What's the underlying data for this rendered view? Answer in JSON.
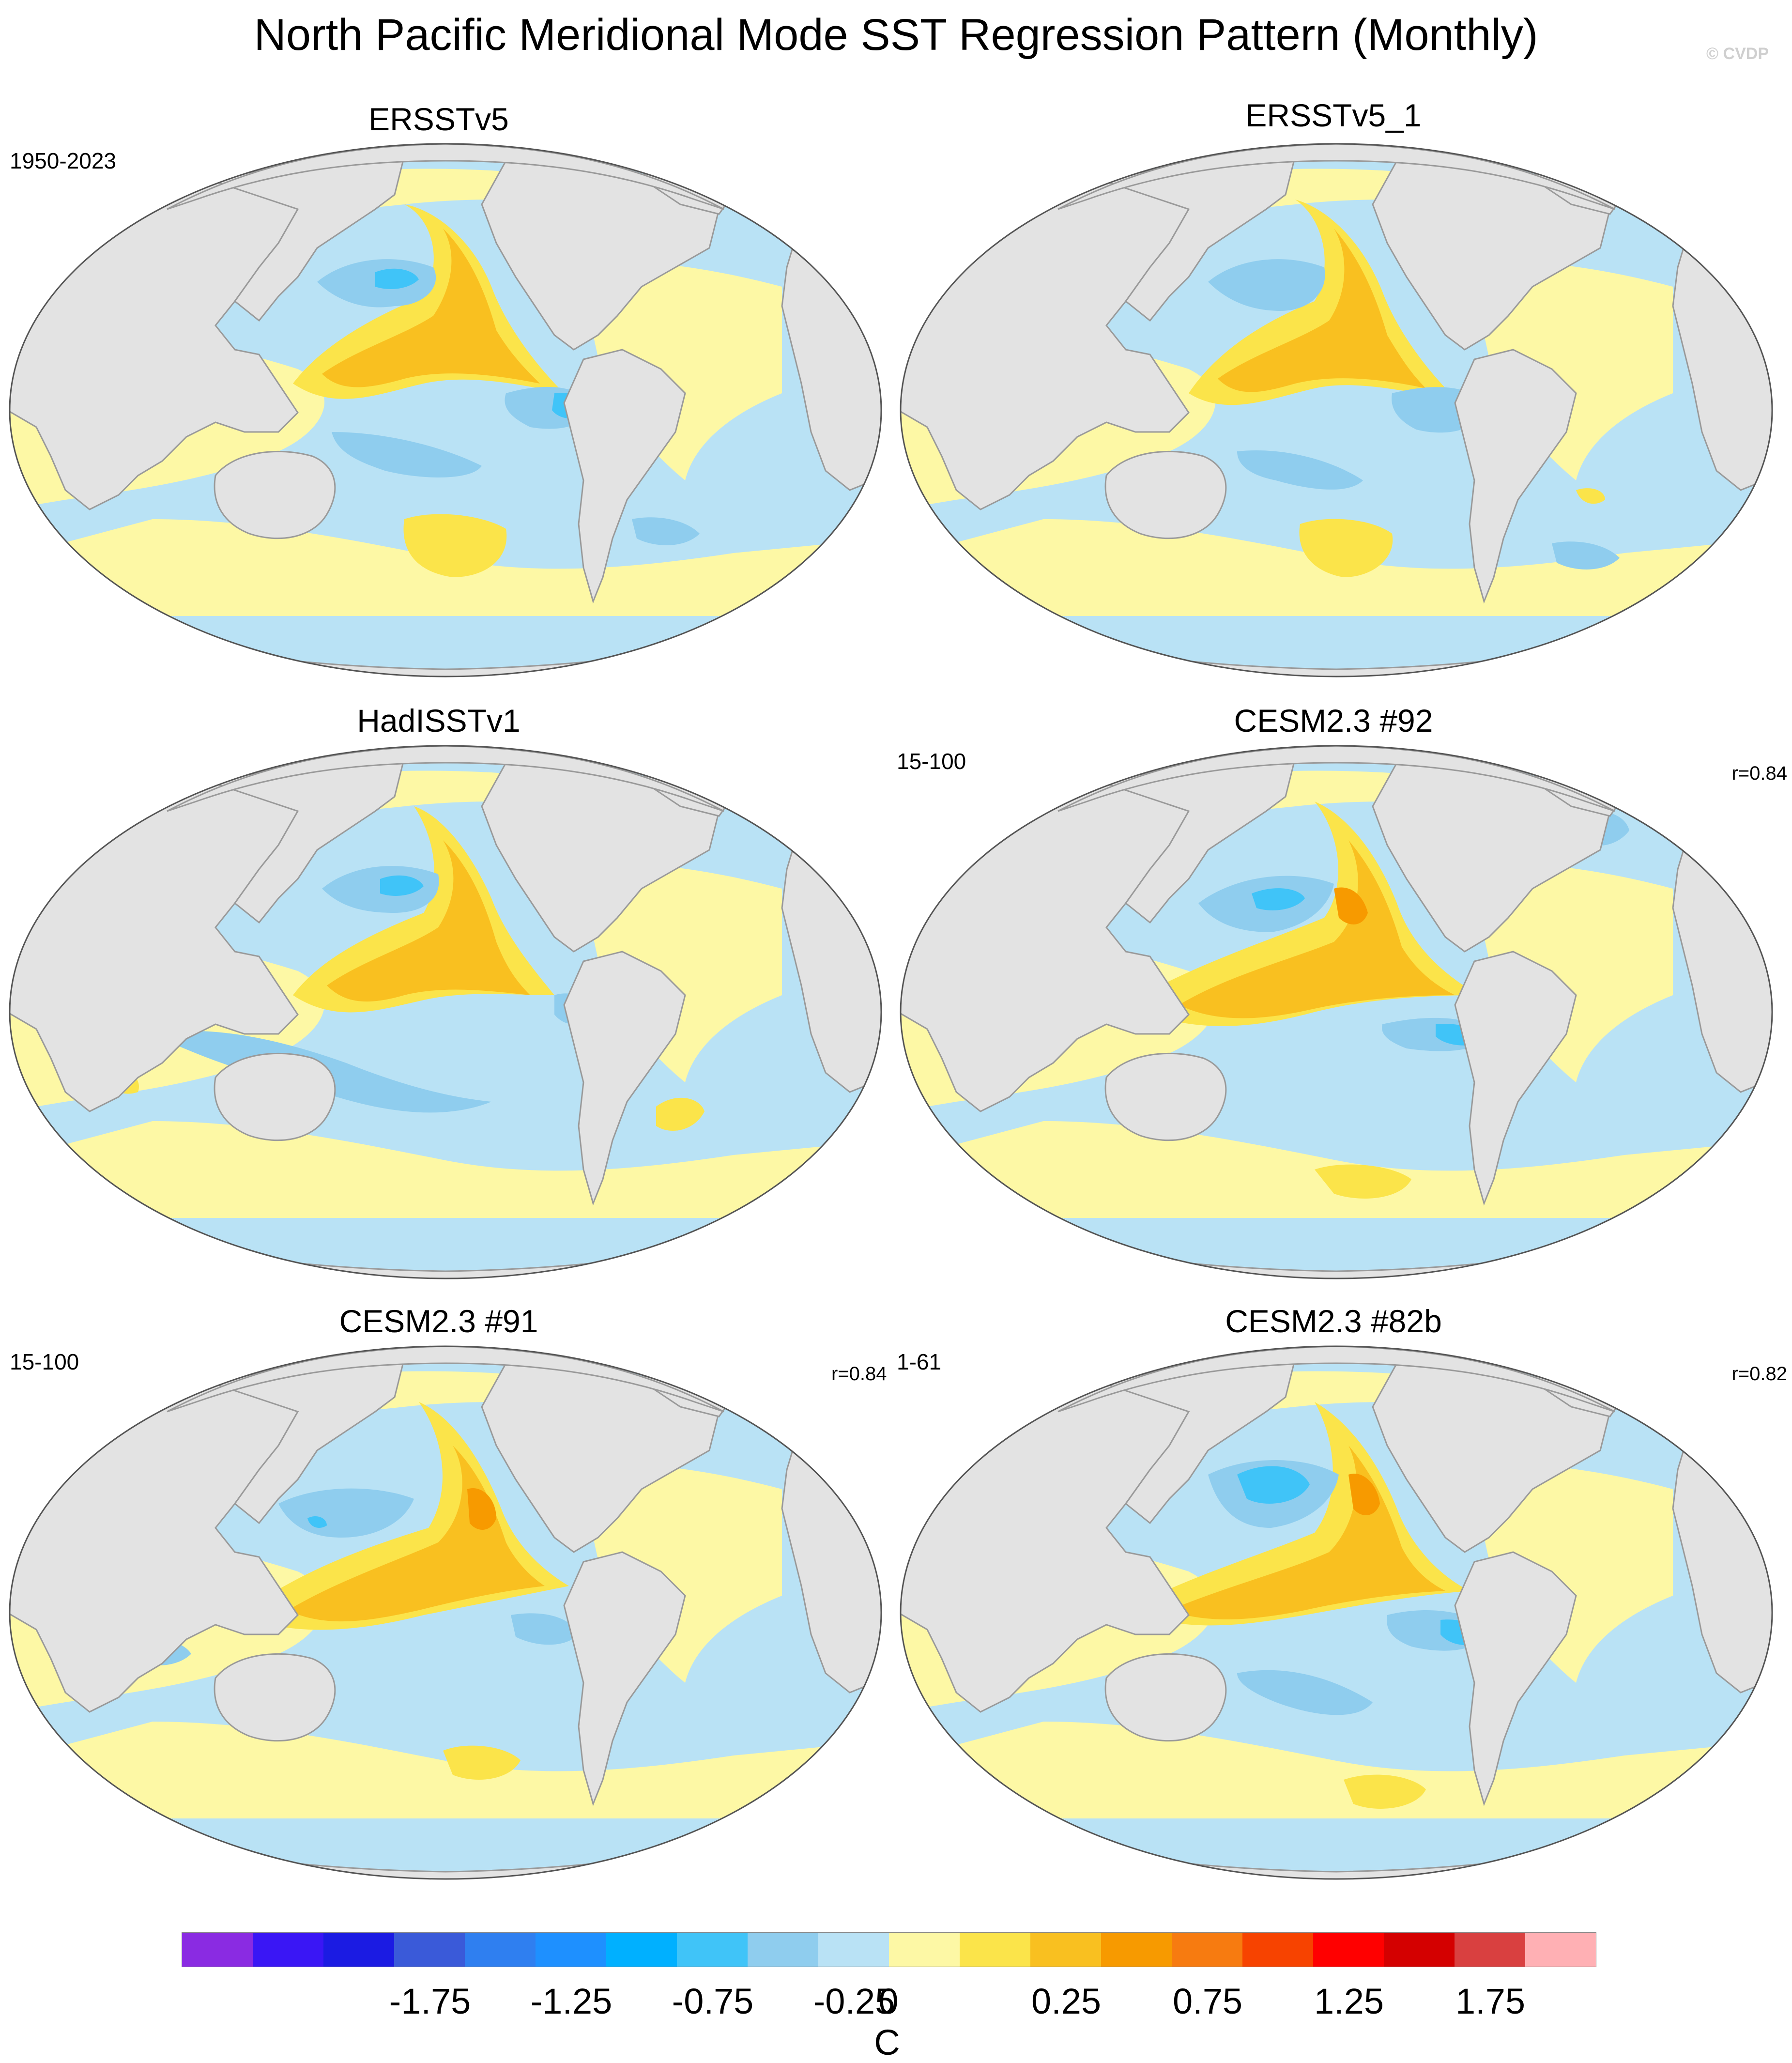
{
  "title": "North Pacific Meridional Mode SST Regression Pattern (Monthly)",
  "copyright": "© CVDP",
  "panels": [
    {
      "id": "p1",
      "title": "ERSSTv5",
      "left_label": "1950-2023",
      "right_label": ""
    },
    {
      "id": "p2",
      "title": "ERSSTv5_1",
      "left_label": "",
      "right_label": ""
    },
    {
      "id": "p3",
      "title": "HadISSTv1",
      "left_label": "",
      "right_label": ""
    },
    {
      "id": "p4",
      "title": "CESM2.3 #92",
      "left_label": "15-100",
      "right_label": "r=0.84"
    },
    {
      "id": "p5",
      "title": "CESM2.3 #91",
      "left_label": "15-100",
      "right_label": "r=0.84"
    },
    {
      "id": "p6",
      "title": "CESM2.3 #82b",
      "left_label": "1-61",
      "right_label": "r=0.82"
    }
  ],
  "colorbar": {
    "unit": "C",
    "colors": [
      "#8a2be2",
      "#3a16f5",
      "#1b1be3",
      "#3a5ad9",
      "#2f7ff0",
      "#1e90ff",
      "#00b0ff",
      "#40c4f8",
      "#8fcdee",
      "#b9e2f5",
      "#fdf8a5",
      "#fbe44a",
      "#f9c020",
      "#f79a00",
      "#f77b10",
      "#f74300",
      "#ff0000",
      "#d40000",
      "#d94040",
      "#ffb0b4"
    ],
    "tick_labels": [
      "-1.75",
      "-1.25",
      "-0.75",
      "-0.25",
      "0",
      "0.25",
      "0.75",
      "1.25",
      "1.75"
    ]
  },
  "palette": {
    "land": "#e3e3e3",
    "coast": "#9a9a9a",
    "neutral_pos": "#fdf8a5",
    "neutral_neg": "#b9e2f5"
  }
}
